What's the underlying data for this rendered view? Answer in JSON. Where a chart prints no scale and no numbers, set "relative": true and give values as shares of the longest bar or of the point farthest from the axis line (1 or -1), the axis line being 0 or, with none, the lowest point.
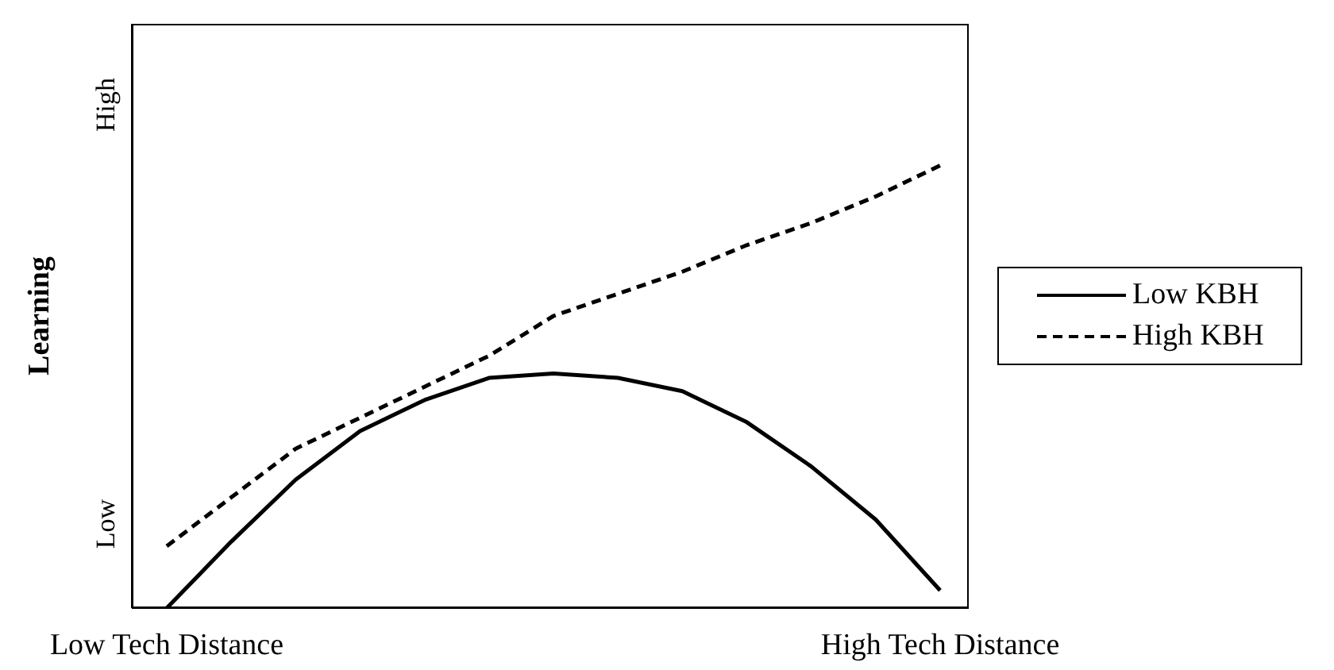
{
  "chart_data": {
    "type": "line",
    "ylabel": "Learning",
    "relative": true,
    "annotations": [
      "Low",
      "High"
    ],
    "categories": [
      "Low Tech Distance",
      null,
      null,
      null,
      null,
      null,
      null,
      null,
      null,
      null,
      null,
      null,
      "High Tech Distance"
    ],
    "series": [
      {
        "name": "Low KBH",
        "color": "#000000",
        "line_style": "solid",
        "values": [
          0,
          0.15,
          0.29,
          0.4,
          0.47,
          0.52,
          0.53,
          0.52,
          0.49,
          0.42,
          0.32,
          0.2,
          0.04
        ]
      },
      {
        "name": "High KBH",
        "color": "#000000",
        "line_style": "dashed",
        "values": [
          0.14,
          0.25,
          0.36,
          0.43,
          0.5,
          0.57,
          0.66,
          0.71,
          0.76,
          0.82,
          0.87,
          0.93,
          1
        ]
      }
    ],
    "legend": "right",
    "marker": "none",
    "grid": false
  }
}
